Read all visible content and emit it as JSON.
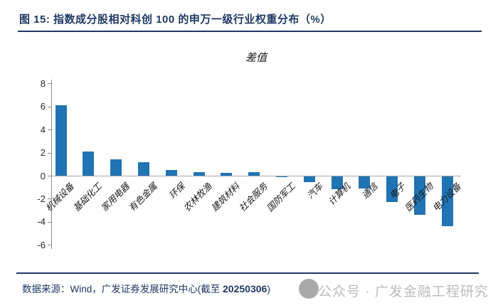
{
  "figure": {
    "title": "图 15:  指数成分股相对科创 100 的申万一级行业权重分布（%）"
  },
  "footer": {
    "source_prefix": "数据来源：Wind，广发证券发展研究中心(截至 ",
    "source_date": "20250306",
    "source_suffix": ")",
    "watermark": "公众号 · 广发金融工程研究"
  },
  "chart_data": {
    "type": "bar",
    "title": "差值",
    "categories": [
      "机械设备",
      "基础化工",
      "家用电器",
      "有色金属",
      "环保",
      "农林牧渔",
      "建筑材料",
      "社会服务",
      "国防军工",
      "汽车",
      "计算机",
      "通信",
      "电子",
      "医药生物",
      "电力设备"
    ],
    "values": [
      6.1,
      2.1,
      1.45,
      1.2,
      0.5,
      0.3,
      0.27,
      0.3,
      -0.1,
      -0.55,
      -1.2,
      -1.1,
      -2.3,
      -3.4,
      -4.4
    ],
    "xlabel": "",
    "ylabel": "",
    "ylim": [
      -6,
      8
    ],
    "ytick_step": 2,
    "grid": false,
    "legend_position": "none",
    "bar_color": "#2074B4",
    "axis_color": "#8c8c8c",
    "zero_line_color": "#A6A6A6",
    "title_color": "#1F3864",
    "watermark_color": "#bcbcbc"
  }
}
